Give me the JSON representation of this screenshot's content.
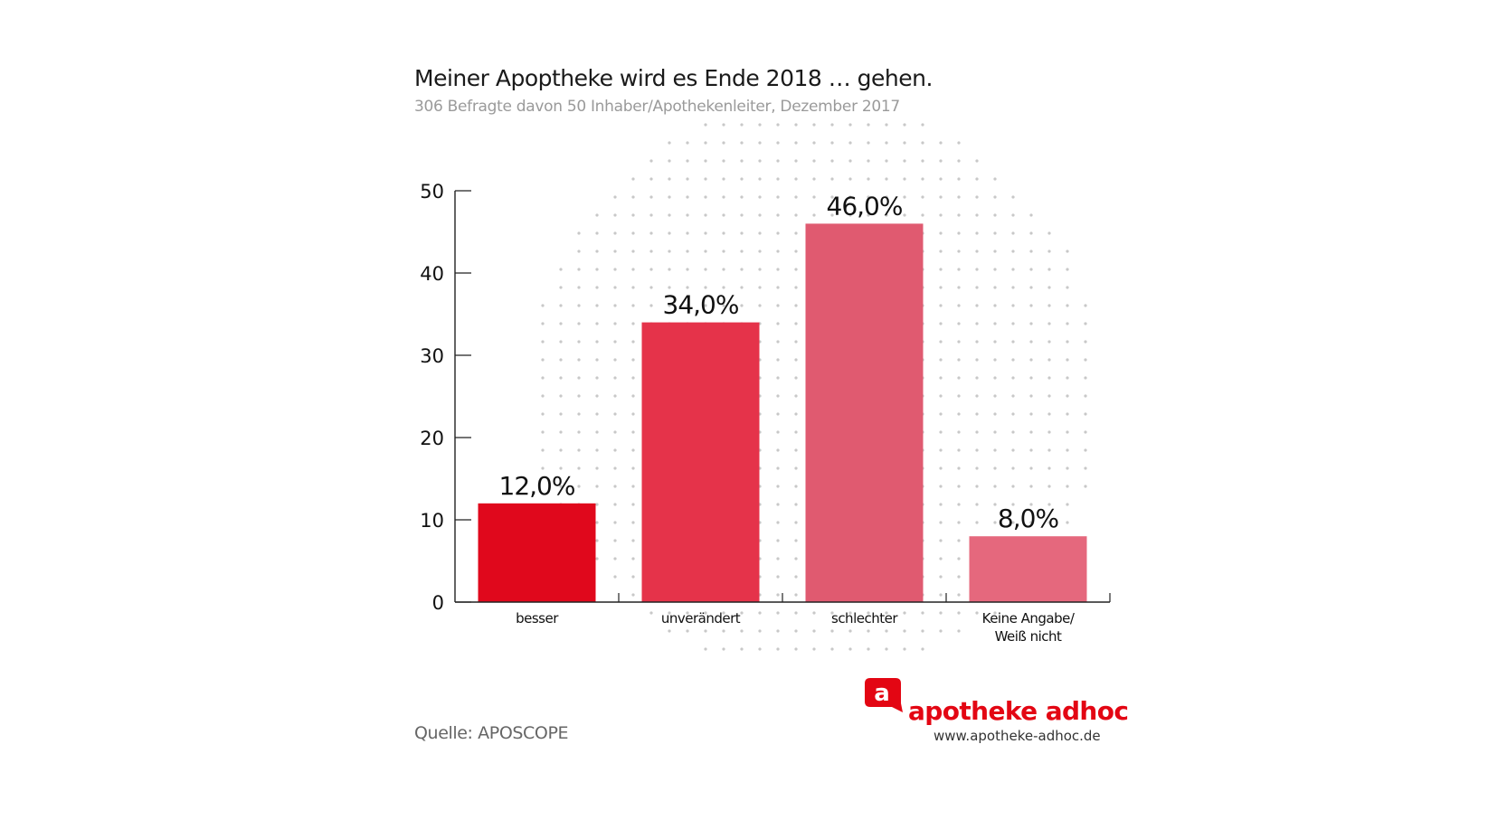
{
  "chart_data": {
    "type": "bar",
    "title": "Meiner Apoptheke wird es Ende 2018 … gehen.",
    "subtitle": "306 Befragte davon 50 Inhaber/Apothekenleiter, Dezember 2017",
    "categories": [
      "besser",
      "unverändert",
      "schlechter",
      "Keine Angabe/\nWeiß nicht"
    ],
    "values": [
      12.0,
      34.0,
      46.0,
      8.0
    ],
    "data_labels": [
      "12,0%",
      "34,0%",
      "46,0%",
      "8,0%"
    ],
    "colors": [
      "#e0081c",
      "#e5334a",
      "#e05a70",
      "#e5687d"
    ],
    "yticks": [
      "0",
      "10",
      "20",
      "30",
      "40",
      "50"
    ],
    "ylim": [
      0,
      50
    ],
    "xlabel": "",
    "ylabel": "",
    "grid": false,
    "legend": "none"
  },
  "source": "Quelle: APOSCOPE",
  "brand": {
    "logo_letter": "a",
    "name": "apotheke adhoc",
    "url": "www.apotheke-adhoc.de",
    "color": "#e30613"
  }
}
